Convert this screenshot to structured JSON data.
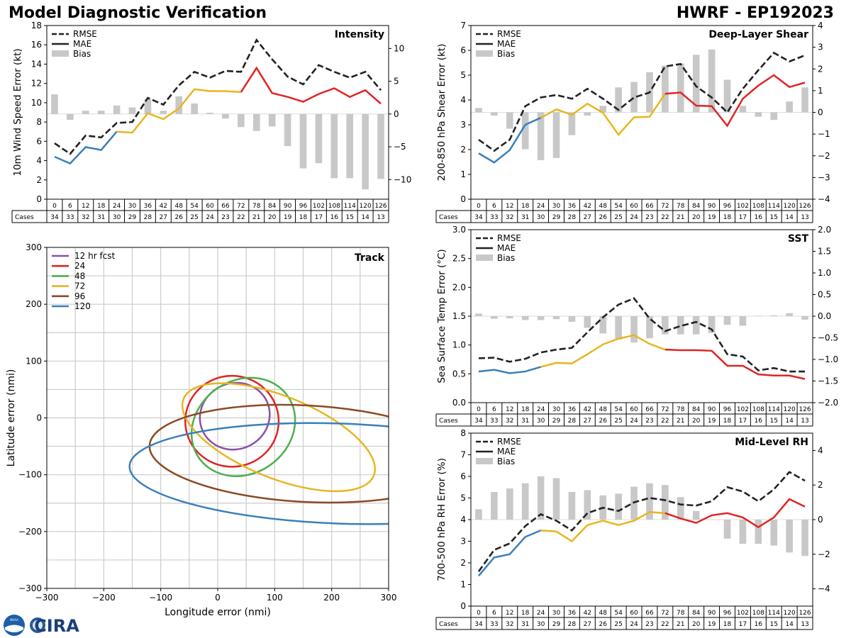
{
  "header": {
    "title": "Model Diagnostic Verification",
    "right_title": "HWRF - EP192023"
  },
  "logo": {
    "text": "CIRA",
    "seal_text": "NOAA"
  },
  "colors": {
    "rmse": "#222222",
    "mae": "#222222",
    "bias": "#c8c8c8",
    "blue": "#3a7fba",
    "yellow": "#e8b520",
    "red": "#e02424",
    "purple": "#8e4ea8",
    "green": "#4caf50",
    "brown": "#8b4a24",
    "grid": "#cccccc"
  },
  "common": {
    "legend": [
      "RMSE",
      "MAE",
      "Bias"
    ],
    "cases_label": "Cases",
    "hours": [
      "0",
      "6",
      "12",
      "18",
      "24",
      "30",
      "36",
      "42",
      "48",
      "54",
      "60",
      "66",
      "72",
      "78",
      "84",
      "90",
      "96",
      "102",
      "108",
      "114",
      "120",
      "126"
    ],
    "cases": [
      "34",
      "33",
      "32",
      "31",
      "30",
      "29",
      "28",
      "27",
      "26",
      "25",
      "24",
      "23",
      "22",
      "21",
      "20",
      "19",
      "18",
      "17",
      "16",
      "15",
      "14",
      "13"
    ]
  },
  "chart_data": [
    {
      "id": "intensity",
      "type": "line",
      "title": "Intensity",
      "ylabel": "10m Wind Speed Error (kt)",
      "ylim": [
        0,
        18
      ],
      "y2lim": [
        -13,
        13.5
      ],
      "yticks": [
        "0",
        "2",
        "4",
        "6",
        "8",
        "10",
        "12",
        "14",
        "16",
        "18"
      ],
      "y2ticks": [
        "−10",
        "−5",
        "0",
        "5",
        "10"
      ],
      "rmse": [
        5.8,
        4.7,
        6.6,
        6.4,
        7.9,
        8.0,
        10.5,
        9.8,
        11.8,
        13.2,
        12.6,
        13.3,
        13.2,
        16.5,
        14.5,
        12.7,
        11.9,
        13.9,
        13.2,
        12.6,
        13.2,
        11.3
      ],
      "mae": [
        4.4,
        3.7,
        5.4,
        5.1,
        7.0,
        6.9,
        8.9,
        8.3,
        9.4,
        11.4,
        11.2,
        11.2,
        11.1,
        13.6,
        11.0,
        10.6,
        10.1,
        10.9,
        11.5,
        10.6,
        11.3,
        9.9
      ],
      "bias": [
        3.0,
        -0.9,
        0.5,
        0.5,
        1.3,
        1.0,
        2.3,
        0.5,
        2.7,
        1.6,
        0.2,
        -0.7,
        -2.0,
        -2.6,
        -1.9,
        -4.9,
        -8.3,
        -7.5,
        -9.8,
        -9.8,
        -11.5,
        -9.9
      ]
    },
    {
      "id": "shear",
      "type": "line",
      "title": "Deep-Layer Shear",
      "ylabel": "200-850 hPa Shear Error (kt)",
      "ylim": [
        0,
        7
      ],
      "y2lim": [
        -4,
        4
      ],
      "yticks": [
        "0",
        "1",
        "2",
        "3",
        "4",
        "5",
        "6",
        "7"
      ],
      "y2ticks": [
        "−4",
        "−3",
        "−2",
        "−1",
        "0",
        "1",
        "2",
        "3",
        "4"
      ],
      "rmse": [
        2.4,
        1.95,
        2.4,
        3.75,
        4.1,
        4.2,
        4.05,
        4.45,
        4.05,
        3.6,
        4.1,
        4.3,
        5.35,
        5.45,
        4.55,
        4.1,
        3.5,
        4.45,
        5.2,
        5.9,
        5.55,
        5.8
      ],
      "mae": [
        1.85,
        1.48,
        1.98,
        3.0,
        3.28,
        3.62,
        3.4,
        3.85,
        3.48,
        2.6,
        3.3,
        3.32,
        4.25,
        4.3,
        3.77,
        3.75,
        2.96,
        4.05,
        4.58,
        5.0,
        4.52,
        4.7
      ],
      "bias": [
        0.2,
        -0.15,
        -0.75,
        -1.7,
        -2.2,
        -2.1,
        -1.05,
        -0.15,
        0.3,
        1.15,
        1.4,
        1.85,
        2.15,
        2.25,
        2.65,
        2.9,
        1.5,
        0.3,
        -0.2,
        -0.35,
        0.5,
        1.15
      ]
    },
    {
      "id": "sst",
      "type": "line",
      "title": "SST",
      "ylabel": "Sea Surface Temp Error (°C)",
      "ylim": [
        0,
        3
      ],
      "y2lim": [
        -2,
        2
      ],
      "yticks": [
        "0.0",
        "0.5",
        "1.0",
        "1.5",
        "2.0",
        "2.5",
        "3.0"
      ],
      "y2ticks": [
        "−2.0",
        "−1.5",
        "−1.0",
        "−0.5",
        "0.0",
        "0.5",
        "1.0",
        "1.5",
        "2.0"
      ],
      "rmse": [
        0.77,
        0.78,
        0.71,
        0.76,
        0.87,
        0.92,
        0.95,
        1.22,
        1.48,
        1.7,
        1.81,
        1.46,
        1.24,
        1.33,
        1.4,
        1.27,
        0.84,
        0.8,
        0.56,
        0.6,
        0.54,
        0.54
      ],
      "mae": [
        0.54,
        0.57,
        0.51,
        0.54,
        0.62,
        0.69,
        0.68,
        0.84,
        1.01,
        1.11,
        1.17,
        1.02,
        0.92,
        0.91,
        0.91,
        0.9,
        0.64,
        0.64,
        0.49,
        0.47,
        0.47,
        0.41
      ],
      "bias": [
        0.06,
        -0.06,
        -0.05,
        -0.09,
        -0.09,
        -0.07,
        -0.13,
        -0.27,
        -0.4,
        -0.54,
        -0.61,
        -0.51,
        -0.42,
        -0.42,
        -0.42,
        -0.39,
        -0.2,
        -0.22,
        0.01,
        0.02,
        0.07,
        -0.08
      ]
    },
    {
      "id": "rh",
      "type": "line",
      "title": "Mid-Level RH",
      "ylabel": "700-500 hPa RH Error (%)",
      "ylim": [
        0,
        8
      ],
      "y2lim": [
        -5,
        5
      ],
      "yticks": [
        "0",
        "1",
        "2",
        "3",
        "4",
        "5",
        "6",
        "7",
        "8"
      ],
      "y2ticks": [
        "−4",
        "−2",
        "0",
        "2",
        "4"
      ],
      "rmse": [
        1.6,
        2.6,
        2.9,
        3.7,
        4.25,
        3.95,
        3.5,
        4.3,
        4.55,
        4.4,
        4.8,
        5.0,
        4.9,
        4.7,
        4.65,
        4.85,
        5.5,
        5.3,
        4.85,
        5.4,
        6.2,
        5.8
      ],
      "mae": [
        1.4,
        2.25,
        2.4,
        3.2,
        3.5,
        3.45,
        3.0,
        3.75,
        3.95,
        3.75,
        3.95,
        4.35,
        4.3,
        4.05,
        3.85,
        4.2,
        4.3,
        4.1,
        3.65,
        4.1,
        4.95,
        4.6
      ],
      "bias": [
        0.6,
        1.6,
        1.8,
        2.1,
        2.5,
        2.4,
        1.6,
        1.7,
        1.4,
        1.5,
        1.9,
        2.1,
        2.0,
        1.3,
        0.5,
        0.0,
        -1.1,
        -1.4,
        -1.4,
        -1.5,
        -1.9,
        -2.1
      ]
    },
    {
      "id": "track",
      "type": "scatter",
      "title": "Track",
      "xlabel": "Longitude error (nmi)",
      "ylabel": "Latitude error (nmi)",
      "xlim": [
        -300,
        300
      ],
      "ylim": [
        -300,
        300
      ],
      "xticks": [
        "−300",
        "−200",
        "−100",
        "0",
        "100",
        "200",
        "300"
      ],
      "yticks": [
        "−300",
        "−200",
        "−100",
        "0",
        "100",
        "200",
        "300"
      ],
      "ellipses": [
        {
          "label": "12 hr fcst",
          "color": "#8e4ea8",
          "cx": 30,
          "cy": 3,
          "rx": 62,
          "ry": 58,
          "angle": 25
        },
        {
          "label": "24",
          "color": "#e02424",
          "cx": 25,
          "cy": -6,
          "rx": 82,
          "ry": 80,
          "angle": 0
        },
        {
          "label": "48",
          "color": "#4caf50",
          "cx": 45,
          "cy": -16,
          "rx": 95,
          "ry": 82,
          "angle": 35
        },
        {
          "label": "72",
          "color": "#e8b520",
          "cx": 107,
          "cy": -34,
          "rx": 180,
          "ry": 72,
          "angle": -22
        },
        {
          "label": "96",
          "color": "#8b4a24",
          "cx": 155,
          "cy": -63,
          "rx": 275,
          "ry": 85,
          "angle": -3
        },
        {
          "label": "120",
          "color": "#3a7fba",
          "cx": 215,
          "cy": -98,
          "rx": 370,
          "ry": 88,
          "angle": -2
        }
      ]
    }
  ]
}
